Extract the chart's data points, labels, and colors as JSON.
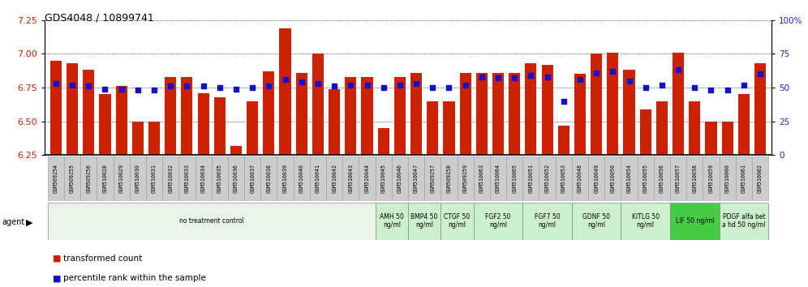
{
  "title": "GDS4048 / 10899741",
  "ylim_left": [
    6.25,
    7.25
  ],
  "ylim_right": [
    0,
    100
  ],
  "yticks_left": [
    6.25,
    6.5,
    6.75,
    7.0,
    7.25
  ],
  "yticks_right": [
    0,
    25,
    50,
    75,
    100
  ],
  "bar_color": "#cc2200",
  "dot_color": "#1111cc",
  "samples": [
    "GSM509254",
    "GSM509255",
    "GSM509256",
    "GSM510028",
    "GSM510029",
    "GSM510030",
    "GSM510031",
    "GSM510032",
    "GSM510033",
    "GSM510034",
    "GSM510035",
    "GSM510036",
    "GSM510037",
    "GSM510038",
    "GSM510039",
    "GSM510040",
    "GSM510041",
    "GSM510042",
    "GSM510043",
    "GSM510044",
    "GSM510045",
    "GSM510046",
    "GSM510047",
    "GSM509257",
    "GSM509258",
    "GSM509259",
    "GSM510063",
    "GSM510064",
    "GSM510065",
    "GSM510051",
    "GSM510052",
    "GSM510053",
    "GSM510048",
    "GSM510049",
    "GSM510050",
    "GSM510054",
    "GSM510055",
    "GSM510056",
    "GSM510057",
    "GSM510058",
    "GSM510059",
    "GSM510060",
    "GSM510061",
    "GSM510062"
  ],
  "bar_heights": [
    6.95,
    6.93,
    6.88,
    6.7,
    6.76,
    6.5,
    6.5,
    6.83,
    6.83,
    6.71,
    6.68,
    6.32,
    6.65,
    6.87,
    7.19,
    6.86,
    7.0,
    6.74,
    6.83,
    6.83,
    6.45,
    6.83,
    6.86,
    6.65,
    6.65,
    6.86,
    6.86,
    6.86,
    6.86,
    6.93,
    6.92,
    6.47,
    6.85,
    7.0,
    7.01,
    6.88,
    6.59,
    6.65,
    7.01,
    6.65,
    6.5,
    6.5,
    6.7,
    6.93
  ],
  "dot_values": [
    53,
    52,
    51,
    49,
    49,
    48,
    48,
    51,
    51,
    51,
    50,
    49,
    50,
    51,
    56,
    54,
    53,
    51,
    52,
    52,
    50,
    52,
    53,
    50,
    50,
    52,
    58,
    57,
    57,
    59,
    58,
    40,
    56,
    61,
    62,
    55,
    50,
    52,
    63,
    50,
    48,
    48,
    52,
    60
  ],
  "agent_groups": [
    {
      "label": "no treatment control",
      "start": 0,
      "end": 20,
      "color": "#e8f5e8"
    },
    {
      "label": "AMH 50\nng/ml",
      "start": 20,
      "end": 22,
      "color": "#ccf0cc"
    },
    {
      "label": "BMP4 50\nng/ml",
      "start": 22,
      "end": 24,
      "color": "#ccf0cc"
    },
    {
      "label": "CTGF 50\nng/ml",
      "start": 24,
      "end": 26,
      "color": "#ccf0cc"
    },
    {
      "label": "FGF2 50\nng/ml",
      "start": 26,
      "end": 29,
      "color": "#ccf0cc"
    },
    {
      "label": "FGF7 50\nng/ml",
      "start": 29,
      "end": 32,
      "color": "#ccf0cc"
    },
    {
      "label": "GDNF 50\nng/ml",
      "start": 32,
      "end": 35,
      "color": "#ccf0cc"
    },
    {
      "label": "KITLG 50\nng/ml",
      "start": 35,
      "end": 38,
      "color": "#ccf0cc"
    },
    {
      "label": "LIF 50 ng/ml",
      "start": 38,
      "end": 41,
      "color": "#44cc44"
    },
    {
      "label": "PDGF alfa bet\na hd 50 ng/ml",
      "start": 41,
      "end": 44,
      "color": "#ccf0cc"
    }
  ],
  "legend_bar_label": "transformed count",
  "legend_dot_label": "percentile rank within the sample",
  "background_color": "#ffffff",
  "tick_bg_color": "#cccccc",
  "tick_border_color": "#999999"
}
